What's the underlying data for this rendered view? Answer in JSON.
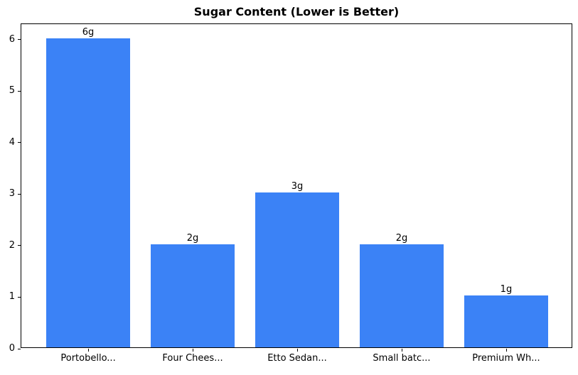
{
  "title": "Sugar Content (Lower is Better)",
  "colors": {
    "bar": "#3b82f6",
    "spine": "#000000",
    "text": "#000000",
    "background": "#ffffff"
  },
  "chart_data": {
    "type": "bar",
    "title": "Sugar Content (Lower is Better)",
    "categories": [
      "Portobello...",
      "Four Chees...",
      "Etto Sedan...",
      "Small batc...",
      "Premium Wh..."
    ],
    "values": [
      6,
      2,
      3,
      2,
      1
    ],
    "bar_labels": [
      "6g",
      "2g",
      "3g",
      "2g",
      "1g"
    ],
    "xlabel": "",
    "ylabel": "",
    "yticks": [
      0,
      1,
      2,
      3,
      4,
      5,
      6
    ],
    "ylim": [
      0,
      6.3
    ],
    "xlim": [
      -0.64,
      4.64
    ],
    "bar_width_units": 0.8,
    "grid": false,
    "legend_position": "none",
    "bar_color": "#3b82f6"
  }
}
